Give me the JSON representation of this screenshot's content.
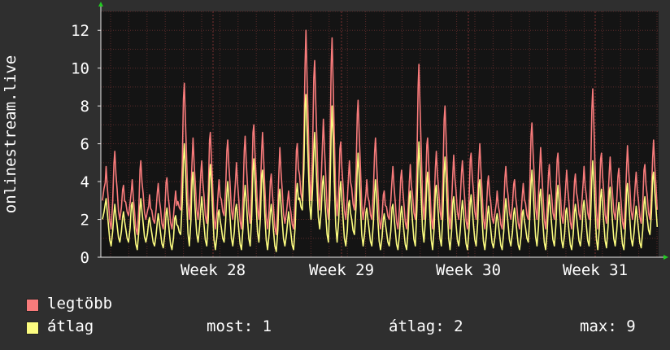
{
  "chart_data": {
    "type": "line",
    "title": "",
    "ylabel": "onlinestream.live",
    "xlabel": "",
    "ylim": [
      0,
      13
    ],
    "y_ticks": [
      0,
      2,
      4,
      6,
      8,
      10,
      12
    ],
    "x_ticks": [
      "Week 28",
      "Week 29",
      "Week 30",
      "Week 31"
    ],
    "grid": true,
    "series": [
      {
        "name": "legtöbb",
        "color": "#f87b7b",
        "peaks": [
          4.8,
          5.6,
          3.8,
          4.1,
          5.1,
          3.3,
          3.9,
          4.2,
          3.5,
          9.2,
          6.3,
          5.1,
          6.6,
          4.1,
          6.2,
          5.0,
          6.4,
          7.0,
          6.6,
          4.4,
          5.8,
          3.5,
          6.0,
          12.0,
          10.4,
          7.3,
          11.6,
          6.1,
          5.1,
          8.3,
          4.1,
          6.3,
          3.5,
          4.8,
          4.6,
          4.9,
          10.2,
          6.3,
          5.6,
          8.0,
          5.4,
          5.1,
          5.5,
          6.0,
          4.3,
          3.5,
          4.8,
          4.1,
          3.9,
          7.1,
          5.8,
          4.9,
          5.5,
          4.6,
          4.4,
          4.8,
          8.9,
          5.5,
          5.3,
          4.7,
          5.9,
          4.5,
          4.9,
          6.2
        ],
        "troughs": [
          3.0,
          1.5,
          2.0,
          2.2,
          1.2,
          2.0,
          1.8,
          1.5,
          1.5,
          2.5,
          2.0,
          2.0,
          1.8,
          1.5,
          2.2,
          2.0,
          1.5,
          1.8,
          2.0,
          1.5,
          1.2,
          1.8,
          1.5,
          3.0,
          3.0,
          2.5,
          2.0,
          2.2,
          2.0,
          2.5,
          2.0,
          2.0,
          1.5,
          2.0,
          1.5,
          1.5,
          2.0,
          2.0,
          1.5,
          2.0,
          1.5,
          2.0,
          1.5,
          2.0,
          1.5,
          1.8,
          1.5,
          2.0,
          1.5,
          2.0,
          2.0,
          1.5,
          2.0,
          1.8,
          1.5,
          2.0,
          2.0,
          1.5,
          1.8,
          2.0,
          1.5,
          2.0,
          1.8,
          2.0
        ]
      },
      {
        "name": "átlag",
        "color": "#fcfc80",
        "peaks": [
          3.1,
          2.8,
          2.4,
          2.9,
          3.1,
          2.1,
          2.3,
          2.6,
          2.2,
          6.0,
          4.5,
          3.2,
          4.9,
          2.5,
          4.0,
          2.8,
          3.8,
          5.2,
          4.6,
          2.8,
          3.6,
          2.4,
          3.9,
          8.6,
          6.6,
          4.3,
          8.0,
          4.0,
          3.0,
          5.5,
          2.6,
          4.1,
          2.3,
          2.8,
          2.7,
          3.5,
          6.1,
          4.5,
          3.8,
          5.3,
          3.2,
          3.0,
          3.3,
          4.1,
          2.7,
          2.3,
          3.1,
          2.6,
          2.5,
          4.6,
          3.6,
          3.3,
          3.8,
          2.6,
          2.8,
          3.0,
          5.1,
          3.6,
          3.7,
          2.9,
          3.9,
          2.7,
          3.2,
          4.5
        ],
        "troughs": [
          2.0,
          0.6,
          0.8,
          0.8,
          0.4,
          0.8,
          0.6,
          0.5,
          0.4,
          1.2,
          0.6,
          0.8,
          0.6,
          0.4,
          0.8,
          0.6,
          0.4,
          0.6,
          0.8,
          0.4,
          0.3,
          0.6,
          0.4,
          2.5,
          2.0,
          1.5,
          0.8,
          0.8,
          0.6,
          1.2,
          0.6,
          0.6,
          0.4,
          0.6,
          0.4,
          0.4,
          0.6,
          0.8,
          0.4,
          0.6,
          0.4,
          0.6,
          0.4,
          0.6,
          0.4,
          0.5,
          0.4,
          0.6,
          0.4,
          0.8,
          0.6,
          0.4,
          0.6,
          0.5,
          0.4,
          0.6,
          0.6,
          0.4,
          0.5,
          0.6,
          0.4,
          0.6,
          0.5,
          1.2
        ]
      }
    ]
  },
  "legend": {
    "max_label": "legtöbb",
    "avg_label": "átlag",
    "stats": [
      {
        "label": "most:",
        "value": "1"
      },
      {
        "label": "átlag:",
        "value": "2"
      },
      {
        "label": "max:",
        "value": "9"
      }
    ]
  },
  "colors": {
    "background": "#2f2f2f",
    "plot_background": "#141414",
    "grid": "#5a2a2a",
    "axis": "#e8e8e8",
    "arrow": "#22cc22"
  }
}
